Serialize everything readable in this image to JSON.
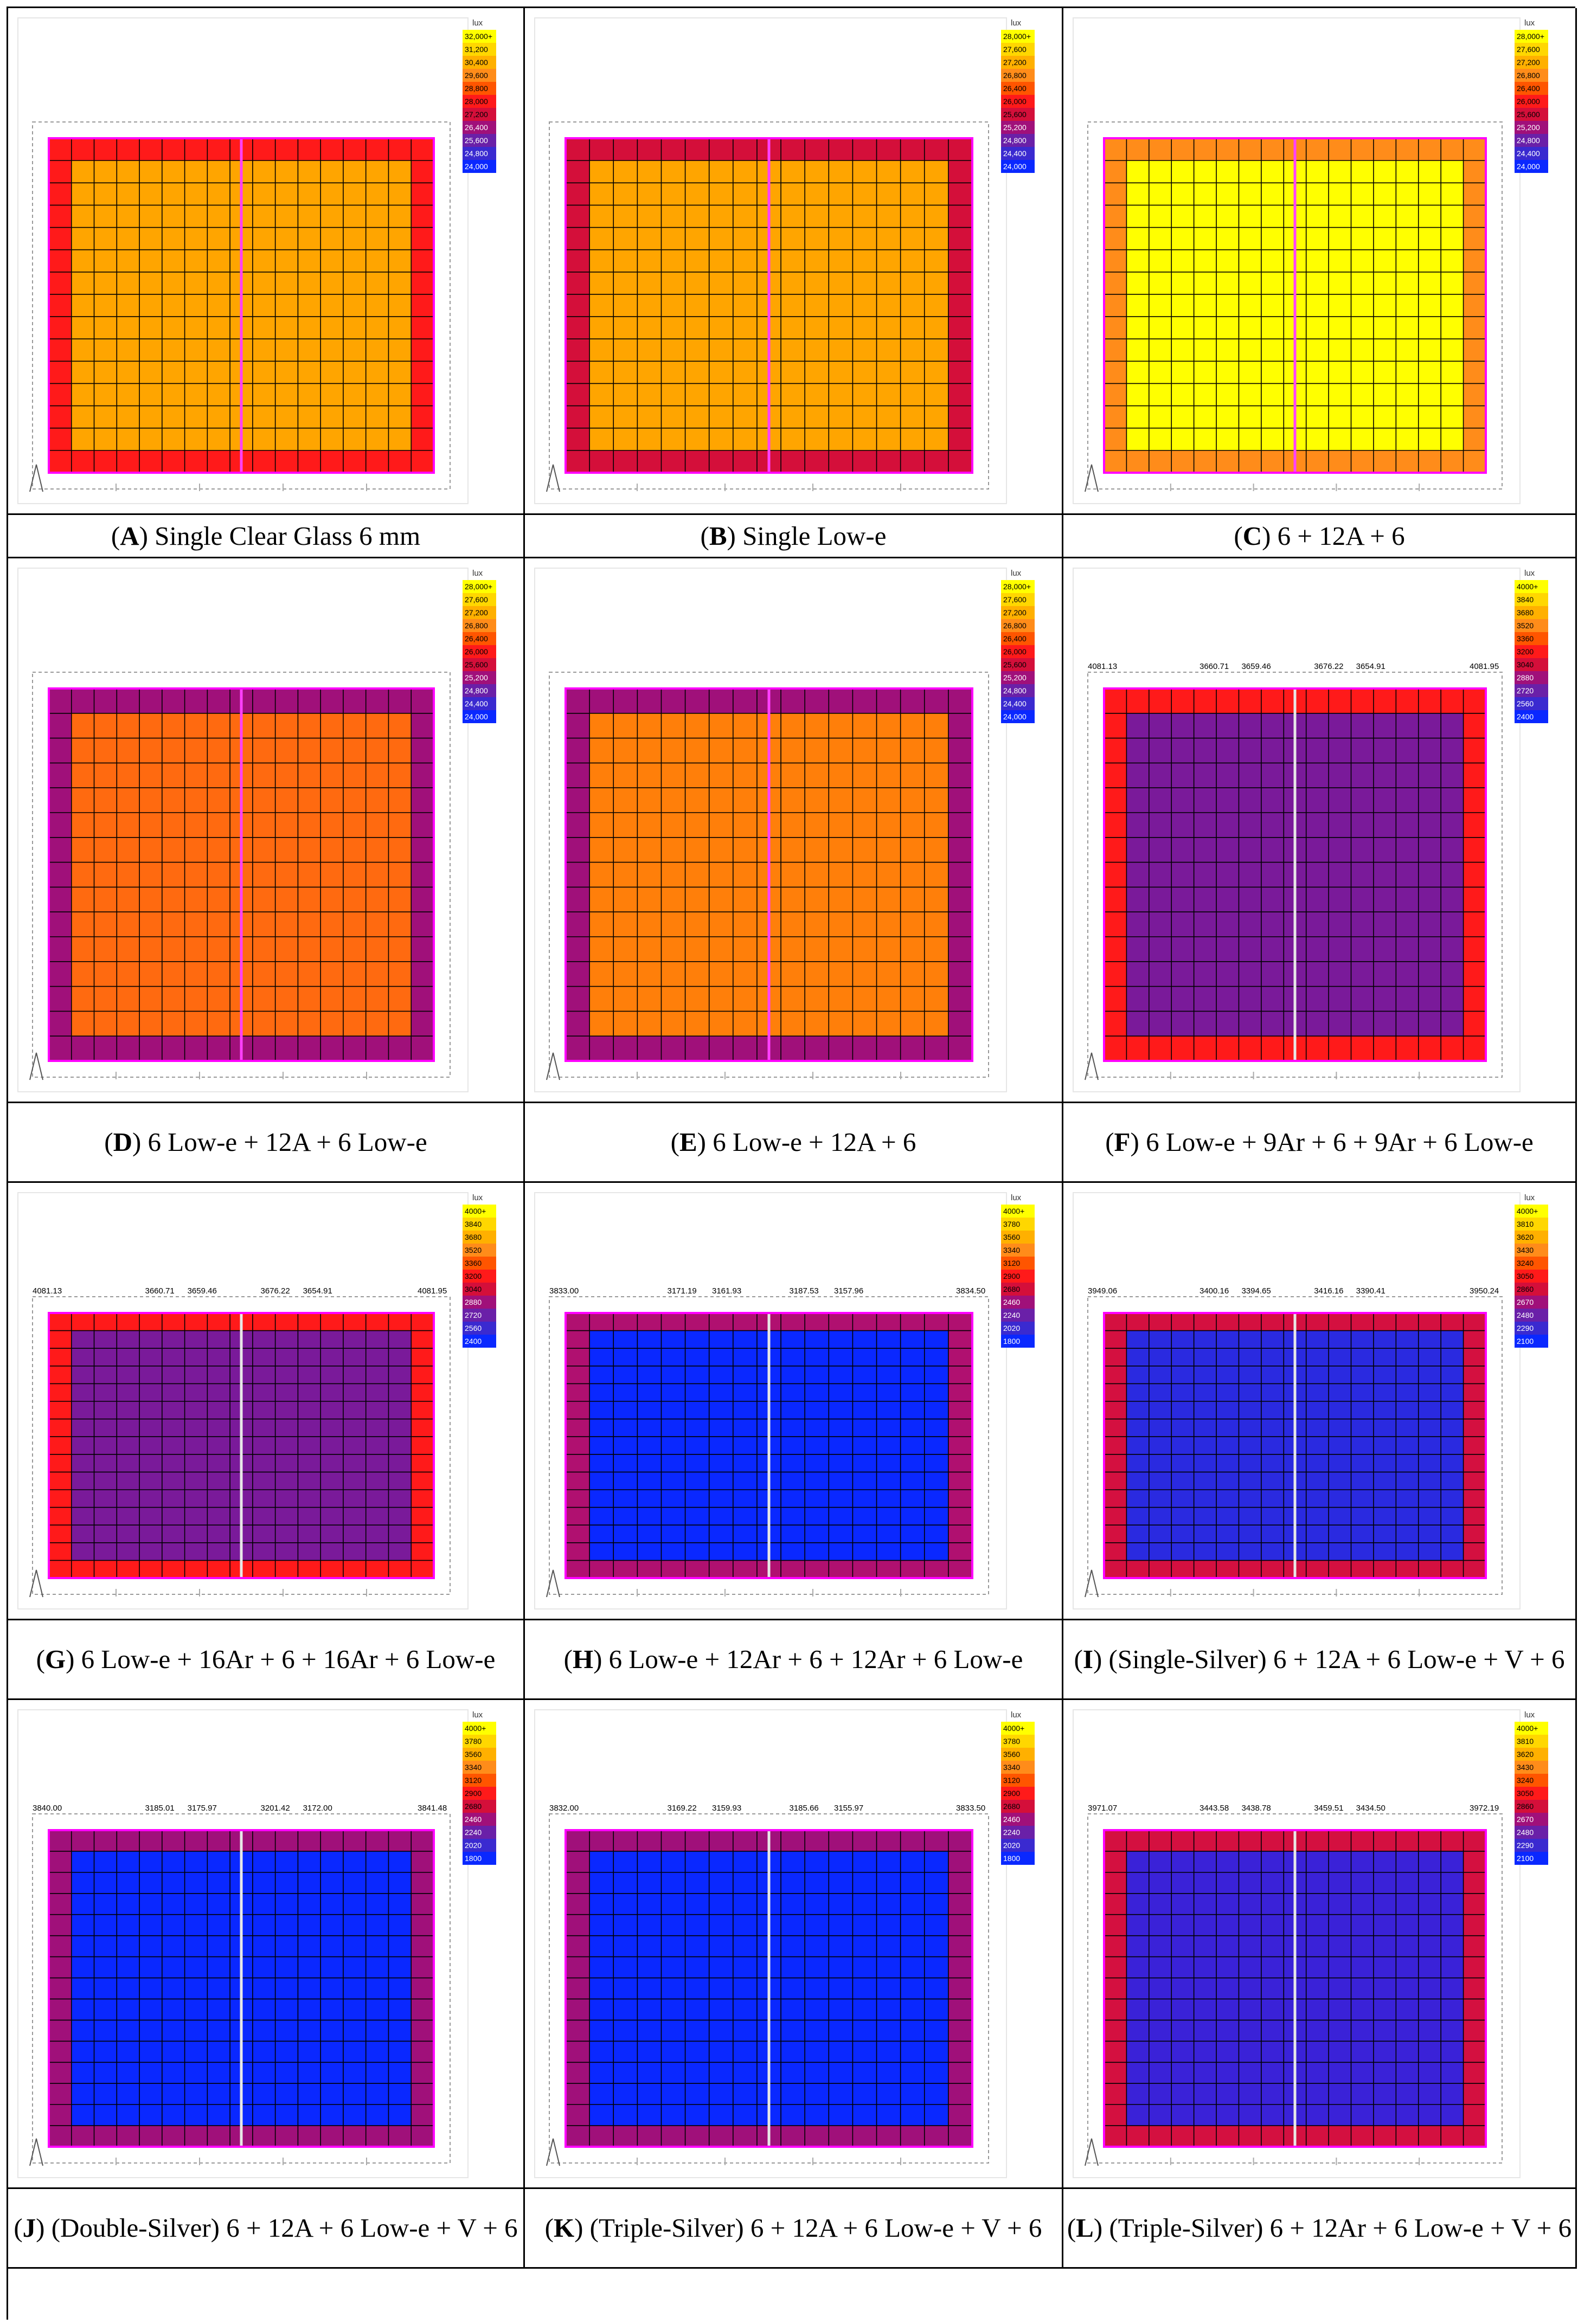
{
  "unit": "lux",
  "scales": {
    "s32": [
      "32,000+",
      "31,200",
      "30,400",
      "29,600",
      "28,800",
      "28,000",
      "27,200",
      "26,400",
      "25,600",
      "24,800",
      "24,000"
    ],
    "s28": [
      "28,000+",
      "27,600",
      "27,200",
      "26,800",
      "26,400",
      "26,000",
      "25,600",
      "25,200",
      "24,800",
      "24,400",
      "24,000"
    ],
    "s4000": [
      "4000+",
      "3840",
      "3680",
      "3520",
      "3360",
      "3200",
      "3040",
      "2880",
      "2720",
      "2560",
      "2400"
    ],
    "s3780": [
      "4000+",
      "3780",
      "3560",
      "3340",
      "3120",
      "2900",
      "2680",
      "2460",
      "2240",
      "2020",
      "1800"
    ],
    "s3810": [
      "4000+",
      "3810",
      "3620",
      "3430",
      "3240",
      "3050",
      "2860",
      "2670",
      "2480",
      "2290",
      "2100"
    ]
  },
  "legend_colors": [
    "#ffff00",
    "#ffd700",
    "#ffb000",
    "#ff8c1a",
    "#ff5500",
    "#ff1a1a",
    "#d40f3a",
    "#a0107a",
    "#6a20a8",
    "#3a2ad0",
    "#0a28ff"
  ],
  "captions": [
    {
      "letter": "A",
      "rest": "Single Clear Glass 6 mm"
    },
    {
      "letter": "B",
      "rest": "Single Low-e"
    },
    {
      "letter": "C",
      "rest": "6 + 12A + 6"
    },
    {
      "letter": "D",
      "rest": "6 Low-e + 12A + 6 Low-e"
    },
    {
      "letter": "E",
      "rest": "6 Low-e + 12A + 6"
    },
    {
      "letter": "F",
      "rest": "6 Low-e + 9Ar + 6 + 9Ar + 6 Low-e"
    },
    {
      "letter": "G",
      "rest": "6 Low-e + 16Ar + 6 + 16Ar + 6 Low-e"
    },
    {
      "letter": "H",
      "rest": "6 Low-e + 12Ar + 6 + 12Ar + 6 Low-e"
    },
    {
      "letter": "I",
      "rest": "(Single-Silver) 6 + 12A + 6 Low-e + V + 6"
    },
    {
      "letter": "J",
      "rest": "(Double-Silver) 6 + 12A + 6 Low-e + V + 6"
    },
    {
      "letter": "K",
      "rest": "(Triple-Silver) 6 + 12A + 6 Low-e + V + 6"
    },
    {
      "letter": "L",
      "rest": "(Triple-Silver) 6 + 12Ar + 6 Low-e + V + 6"
    }
  ],
  "chart_data": [
    {
      "panel": "A",
      "type": "heatmap",
      "legend": "s32",
      "interior": "#ffa500",
      "border": "#ff1a1a",
      "top_labels": []
    },
    {
      "panel": "B",
      "type": "heatmap",
      "legend": "s28",
      "interior": "#ffa500",
      "border": "#d40f3a",
      "top_labels": []
    },
    {
      "panel": "C",
      "type": "heatmap",
      "legend": "s28",
      "interior": "#ffff00",
      "border": "#ff8c1a",
      "top_labels": []
    },
    {
      "panel": "D",
      "type": "heatmap",
      "legend": "s28",
      "interior": "#ff6a10",
      "border": "#a0107a",
      "top_labels": []
    },
    {
      "panel": "E",
      "type": "heatmap",
      "legend": "s28",
      "interior": "#ff7f0a",
      "border": "#a0107a",
      "top_labels": []
    },
    {
      "panel": "F",
      "type": "heatmap",
      "legend": "s4000",
      "interior": "#7a1a9a",
      "border": "#ff1a1a",
      "top_labels": [
        "4081.13",
        "3660.71",
        "3659.46",
        "3676.22",
        "3654.91",
        "4081.95"
      ]
    },
    {
      "panel": "G",
      "type": "heatmap",
      "legend": "s4000",
      "interior": "#7a1a9a",
      "border": "#ff1a1a",
      "top_labels": [
        "4081.13",
        "3660.71",
        "3659.46",
        "3676.22",
        "3654.91",
        "4081.95"
      ]
    },
    {
      "panel": "H",
      "type": "heatmap",
      "legend": "s3780",
      "interior": "#0a28ff",
      "border": "#b01070",
      "top_labels": [
        "3833.00",
        "3171.19",
        "3161.93",
        "3187.53",
        "3157.96",
        "3834.50"
      ]
    },
    {
      "panel": "I",
      "type": "heatmap",
      "legend": "s3810",
      "interior": "#2a2ae0",
      "border": "#d41040",
      "top_labels": [
        "3949.06",
        "3400.16",
        "3394.65",
        "3416.16",
        "3390.41",
        "3950.24"
      ]
    },
    {
      "panel": "J",
      "type": "heatmap",
      "legend": "s3780",
      "interior": "#0a28ff",
      "border": "#a0107a",
      "top_labels": [
        "3840.00",
        "3185.01",
        "3175.97",
        "3201.42",
        "3172.00",
        "3841.48"
      ]
    },
    {
      "panel": "K",
      "type": "heatmap",
      "legend": "s3780",
      "interior": "#0a28ff",
      "border": "#a0107a",
      "top_labels": [
        "3832.00",
        "3169.22",
        "3159.93",
        "3185.66",
        "3155.97",
        "3833.50"
      ]
    },
    {
      "panel": "L",
      "type": "heatmap",
      "legend": "s3810",
      "interior": "#3a22d8",
      "border": "#d41040",
      "top_labels": [
        "3971.07",
        "3443.58",
        "3438.78",
        "3459.51",
        "3434.50",
        "3972.19"
      ]
    }
  ]
}
